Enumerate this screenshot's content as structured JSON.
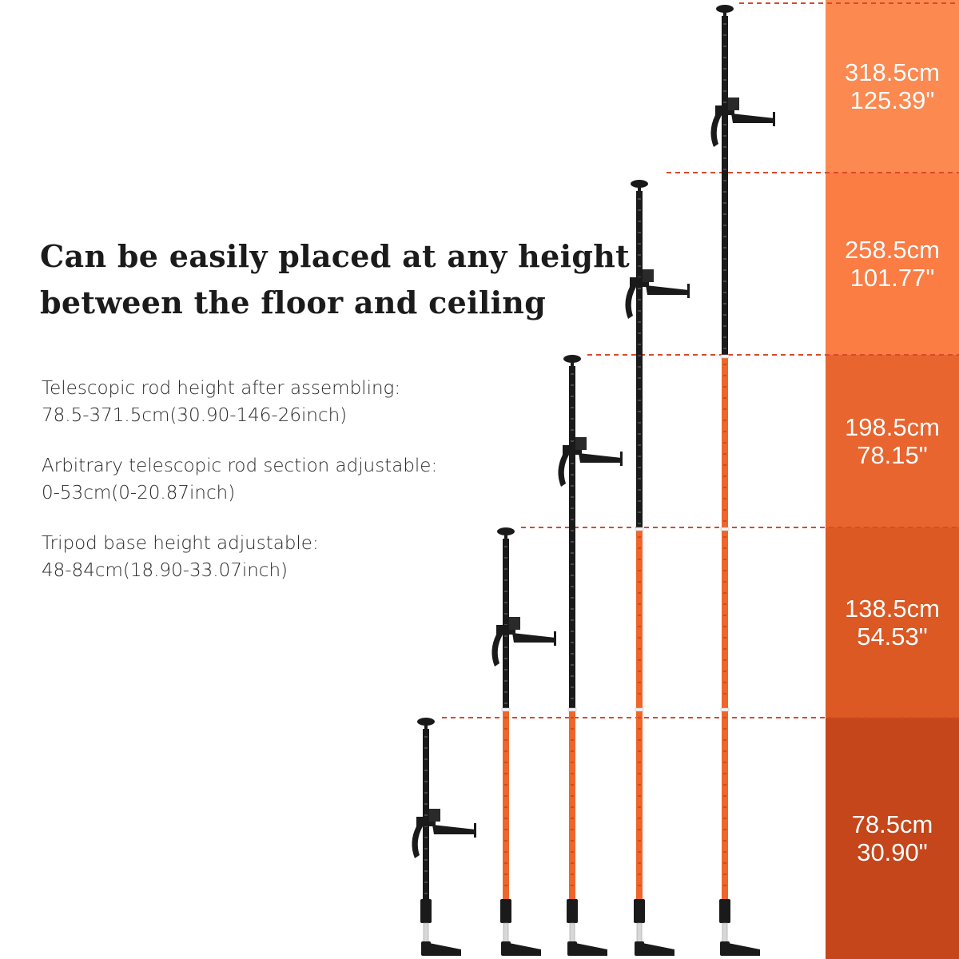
{
  "headline": {
    "line1": "Can be easily placed at any height",
    "line2": "between the floor and ceiling"
  },
  "specs": [
    {
      "label": "Telescopic rod height after assembling:",
      "value": "78.5-371.5cm(30.90-146-26inch)"
    },
    {
      "label": "Arbitrary telescopic rod section adjustable:",
      "value": "0-53cm(0-20.87inch)"
    },
    {
      "label": "Tripod base height adjustable:",
      "value": "48-84cm(18.90-33.07inch)"
    }
  ],
  "heights": [
    {
      "cm": "318.5cm",
      "inch": "125.39\"",
      "color": "#fc8a50"
    },
    {
      "cm": "258.5cm",
      "inch": "101.77\"",
      "color": "#fb7d44"
    },
    {
      "cm": "198.5cm",
      "inch": "78.15\"",
      "color": "#e9652f"
    },
    {
      "cm": "138.5cm",
      "inch": "54.53\"",
      "color": "#dc5924"
    },
    {
      "cm": "78.5cm",
      "inch": "30.90\"",
      "color": "#c5461a"
    }
  ],
  "colors": {
    "rod_black": "#1a1a1a",
    "rod_orange": "#f0652a",
    "dash_line": "#d64a2c"
  }
}
